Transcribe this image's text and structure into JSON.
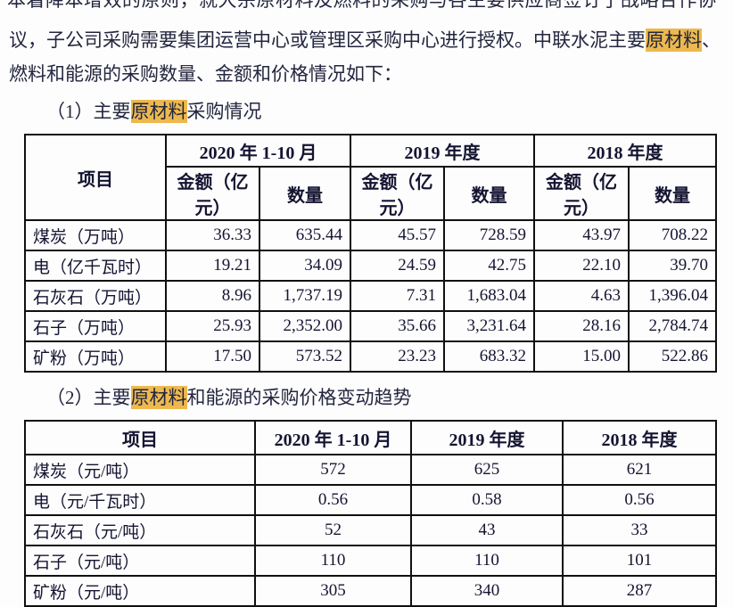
{
  "page": {
    "truncated_top_line": "本着降本增效的原则，就大宗原材料及燃料的采购与各主要供应商签订了战略合作协",
    "paragraph": {
      "line1_pre": "议，子公司采购需要集团运营中心或管理区采购中心进行授权。中联水泥主要",
      "line1_highlight": "原材料",
      "line1_post": "、",
      "line2": "燃料和能源的采购数量、金额和价格情况如下："
    },
    "section1_heading": {
      "pre": "（1）主要",
      "highlight": "原材料",
      "post": "采购情况"
    },
    "section2_heading": {
      "pre": "（2）主要",
      "highlight": "原材料",
      "post": "和能源的采购价格变动趋势"
    },
    "highlight_color": "#edb94e"
  },
  "table1": {
    "item_header": "项目",
    "col_groups": [
      "2020 年 1-10 月",
      "2019 年度",
      "2018 年度"
    ],
    "sub_headers": [
      "金额（亿元）",
      "数量"
    ],
    "rows": [
      {
        "item": "煤炭（万吨）",
        "values": [
          "36.33",
          "635.44",
          "45.57",
          "728.59",
          "43.97",
          "708.22"
        ]
      },
      {
        "item": "电（亿千瓦时）",
        "values": [
          "19.21",
          "34.09",
          "24.59",
          "42.75",
          "22.10",
          "39.70"
        ]
      },
      {
        "item": "石灰石（万吨）",
        "values": [
          "8.96",
          "1,737.19",
          "7.31",
          "1,683.04",
          "4.63",
          "1,396.04"
        ]
      },
      {
        "item": "石子（万吨）",
        "values": [
          "25.93",
          "2,352.00",
          "35.66",
          "3,231.64",
          "28.16",
          "2,784.74"
        ]
      },
      {
        "item": "矿粉（万吨）",
        "values": [
          "17.50",
          "573.52",
          "23.23",
          "683.32",
          "15.00",
          "522.86"
        ]
      }
    ]
  },
  "table2": {
    "headers": [
      "项目",
      "2020 年 1-10 月",
      "2019 年度",
      "2018 年度"
    ],
    "rows": [
      {
        "item": "煤炭（元/吨）",
        "values": [
          "572",
          "625",
          "621"
        ]
      },
      {
        "item": "电（元/千瓦时）",
        "values": [
          "0.56",
          "0.58",
          "0.56"
        ]
      },
      {
        "item": "石灰石（元/吨）",
        "values": [
          "52",
          "43",
          "33"
        ]
      },
      {
        "item": "石子（元/吨）",
        "values": [
          "110",
          "110",
          "101"
        ]
      },
      {
        "item": "矿粉（元/吨）",
        "values": [
          "305",
          "340",
          "287"
        ]
      }
    ]
  }
}
